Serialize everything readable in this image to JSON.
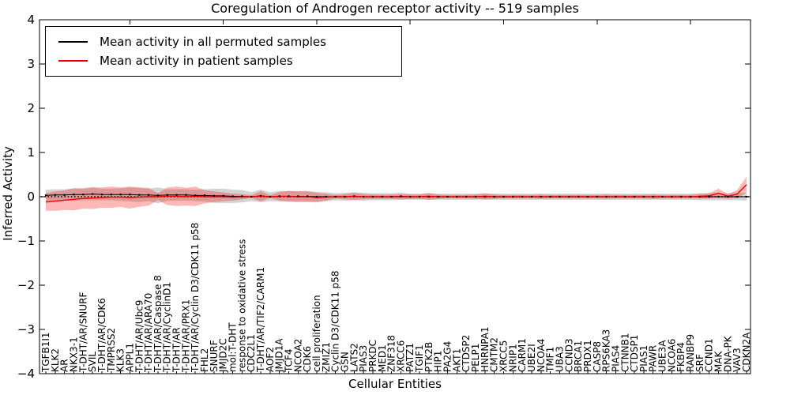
{
  "figure": {
    "title": "Coregulation of Androgen receptor activity -- 519 samples",
    "xlabel": "Cellular Entities",
    "ylabel": "Inferred Activity"
  },
  "legend": {
    "entries": [
      {
        "label": "Mean activity in all permuted samples",
        "color": "#000000"
      },
      {
        "label": "Mean activity in patient samples",
        "color": "#ee0000"
      }
    ]
  },
  "chart_data": {
    "type": "line",
    "title": "Coregulation of Androgen receptor activity -- 519 samples",
    "xlabel": "Cellular Entities",
    "ylabel": "Inferred Activity",
    "ylim": [
      -4,
      4
    ],
    "yticks": [
      4,
      3,
      2,
      1,
      0,
      -1,
      -2,
      -3,
      -4
    ],
    "grid": false,
    "legend_position": "upper left",
    "zero_line": {
      "style": "dotted",
      "color": "#000000",
      "y": 0
    },
    "categories": [
      "TGFB1I1",
      "KLK2",
      "AR",
      "NKX3-1",
      "T-DHT/AR/SNURF",
      "SVIL",
      "T-DHT/AR/CDK6",
      "TMPRSS2",
      "KLK3",
      "APPL1",
      "T-DHT/AR/Ubc9",
      "T-DHT/AR/ARA70",
      "T-DHT/AR/Caspase 8",
      "T-DHT/AR/CyclinD1",
      "T-DHT/AR",
      "T-DHT/AR/PRX1",
      "T-DHT/AR/Cyclin D3/CDK11 p58",
      "FHL2",
      "SNURF",
      "JMJD2C",
      "mol:T-DHT",
      "response to oxidative stress",
      "CDC2L1",
      "T-DHT/AR/TIF2/CARM1",
      "AOF2",
      "JMJD1A",
      "TCF4",
      "NCOA2",
      "CDK6",
      "cell proliferation",
      "ZMIZ1",
      "Cyclin D3/CDK11 p58",
      "GSN",
      "LATS2",
      "PIAS3",
      "PRKDC",
      "MED1",
      "ZNF318",
      "XRCC6",
      "PATZ1",
      "TGIF1",
      "PTK2B",
      "HIP1",
      "PA2G4",
      "AKT1",
      "CTDSP2",
      "PELP1",
      "HNRNPA1",
      "CMTM2",
      "XRCC5",
      "NRIP1",
      "CARM1",
      "UBE2I",
      "NCOA4",
      "TMF1",
      "UBA3",
      "CCND3",
      "BRCA1",
      "PRDX1",
      "CASP8",
      "RPS6KA3",
      "PIAS4",
      "CTNNB1",
      "CTDSP1",
      "PIAS1",
      "PAWR",
      "UBE3A",
      "NCOA6",
      "FKBP4",
      "RANBP9",
      "SRF",
      "CCND1",
      "MAK",
      "DNA-PK",
      "VAV3",
      "CDKN2A"
    ],
    "series": [
      {
        "name": "Mean activity in all permuted samples",
        "color": "#000000",
        "band_color": "#808080",
        "band_opacity": 0.35,
        "values": [
          0.03,
          0.04,
          0.04,
          0.05,
          0.05,
          0.06,
          0.05,
          0.05,
          0.05,
          0.05,
          0.04,
          0.04,
          0.03,
          0.04,
          0.04,
          0.04,
          0.03,
          0.03,
          0.02,
          0.02,
          0.01,
          0.01,
          0.0,
          0.02,
          0.0,
          0.01,
          0.01,
          0.01,
          0.01,
          0.0,
          0.0,
          0.0,
          0.0,
          0.01,
          0.0,
          0.0,
          0.0,
          0.0,
          0.01,
          0.0,
          0.0,
          0.0,
          0.0,
          0.0,
          0.0,
          0.0,
          0.0,
          0.0,
          0.0,
          0.0,
          0.0,
          0.0,
          0.0,
          0.0,
          0.0,
          0.0,
          0.0,
          0.0,
          0.0,
          0.0,
          0.0,
          0.0,
          0.0,
          0.0,
          0.0,
          0.0,
          0.0,
          0.0,
          0.0,
          0.0,
          0.0,
          0.0,
          0.0,
          0.0,
          0.0,
          0.0
        ],
        "band_halfwidth": [
          0.13,
          0.13,
          0.13,
          0.14,
          0.13,
          0.14,
          0.13,
          0.13,
          0.14,
          0.16,
          0.16,
          0.14,
          0.18,
          0.13,
          0.13,
          0.13,
          0.13,
          0.14,
          0.16,
          0.16,
          0.15,
          0.14,
          0.1,
          0.14,
          0.1,
          0.12,
          0.12,
          0.12,
          0.12,
          0.11,
          0.1,
          0.08,
          0.09,
          0.09,
          0.09,
          0.08,
          0.08,
          0.08,
          0.08,
          0.07,
          0.07,
          0.07,
          0.07,
          0.07,
          0.07,
          0.07,
          0.07,
          0.07,
          0.07,
          0.07,
          0.07,
          0.07,
          0.07,
          0.07,
          0.07,
          0.07,
          0.07,
          0.07,
          0.07,
          0.07,
          0.07,
          0.07,
          0.07,
          0.07,
          0.07,
          0.07,
          0.07,
          0.07,
          0.07,
          0.07,
          0.08,
          0.08,
          0.08,
          0.08,
          0.08,
          0.09
        ]
      },
      {
        "name": "Mean activity in patient samples",
        "color": "#ee0000",
        "band_color": "#ff0000",
        "band_opacity": 0.28,
        "values": [
          -0.12,
          -0.1,
          -0.08,
          -0.06,
          -0.04,
          -0.03,
          -0.02,
          -0.01,
          -0.01,
          -0.02,
          -0.01,
          0.0,
          0.0,
          0.01,
          0.01,
          0.0,
          0.01,
          0.0,
          0.0,
          0.0,
          -0.01,
          0.0,
          0.0,
          0.01,
          0.0,
          0.01,
          0.01,
          0.0,
          0.0,
          -0.02,
          -0.01,
          0.0,
          0.0,
          0.01,
          0.0,
          0.0,
          0.0,
          0.0,
          0.0,
          0.0,
          0.0,
          0.01,
          0.0,
          0.0,
          0.0,
          0.0,
          0.0,
          0.01,
          0.0,
          0.0,
          0.0,
          0.0,
          0.0,
          0.0,
          0.0,
          0.0,
          0.0,
          0.0,
          0.0,
          0.0,
          0.0,
          0.0,
          0.0,
          0.0,
          0.0,
          0.0,
          0.0,
          0.0,
          0.0,
          0.0,
          0.01,
          0.02,
          0.08,
          0.01,
          0.06,
          0.27
        ],
        "band_halfwidth": [
          0.2,
          0.22,
          0.22,
          0.25,
          0.23,
          0.25,
          0.23,
          0.24,
          0.22,
          0.25,
          0.22,
          0.2,
          0.08,
          0.2,
          0.22,
          0.2,
          0.22,
          0.15,
          0.12,
          0.1,
          0.08,
          0.06,
          0.03,
          0.12,
          0.03,
          0.1,
          0.12,
          0.12,
          0.12,
          0.11,
          0.08,
          0.04,
          0.06,
          0.08,
          0.06,
          0.05,
          0.05,
          0.05,
          0.06,
          0.05,
          0.05,
          0.08,
          0.05,
          0.04,
          0.04,
          0.04,
          0.05,
          0.07,
          0.05,
          0.04,
          0.04,
          0.04,
          0.04,
          0.05,
          0.04,
          0.04,
          0.04,
          0.04,
          0.04,
          0.04,
          0.05,
          0.04,
          0.04,
          0.04,
          0.04,
          0.05,
          0.04,
          0.04,
          0.04,
          0.04,
          0.05,
          0.06,
          0.1,
          0.05,
          0.09,
          0.18
        ]
      }
    ]
  }
}
